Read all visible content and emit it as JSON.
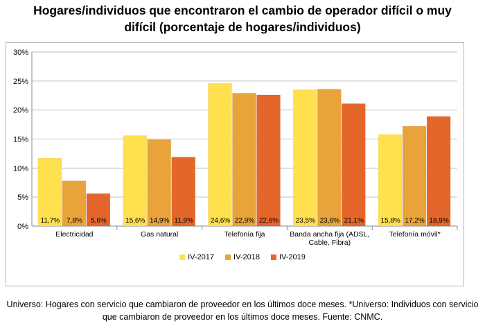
{
  "title_line1": "Hogares/individuos que encontraron el cambio de operador difícil o muy",
  "title_line2": "difícil (porcentaje de hogares/individuos)",
  "footnote_line1": "Universo: Hogares con servicio que cambiaron de proveedor en los últimos doce meses. *Universo: Individuos con servicio",
  "footnote_line2": "que cambiaron de proveedor en los últimos doce meses. Fuente: CNMC.",
  "chart_data": {
    "type": "bar",
    "categories": [
      "Electricidad",
      "Gas natural",
      "Telefonía fija",
      "Banda ancha fija (ADSL, Cable, Fibra)",
      "Telefonía móvil*"
    ],
    "category_lines": [
      [
        "Electricidad"
      ],
      [
        "Gas natural"
      ],
      [
        "Telefonía fija"
      ],
      [
        "Banda ancha fija (ADSL,",
        "Cable, Fibra)"
      ],
      [
        "Telefonía móvil*"
      ]
    ],
    "series": [
      {
        "name": "IV-2017",
        "values": [
          11.7,
          15.6,
          24.6,
          23.5,
          15.8
        ],
        "labels": [
          "11,7%",
          "15,6%",
          "24,6%",
          "23,5%",
          "15,8%"
        ],
        "color": "#FFE04F"
      },
      {
        "name": "IV-2018",
        "values": [
          7.8,
          14.9,
          22.9,
          23.6,
          17.2
        ],
        "labels": [
          "7,8%",
          "14,9%",
          "22,9%",
          "23,6%",
          "17,2%"
        ],
        "color": "#E8A33A"
      },
      {
        "name": "IV-2019",
        "values": [
          5.6,
          11.9,
          22.6,
          21.1,
          18.9
        ],
        "labels": [
          "5,6%",
          "11,9%",
          "22,6%",
          "21,1%",
          "18,9%"
        ],
        "color": "#E5662A"
      }
    ],
    "ylim": [
      0,
      30
    ],
    "yticks": [
      0,
      5,
      10,
      15,
      20,
      25,
      30
    ],
    "ytick_labels": [
      "0%",
      "5%",
      "10%",
      "15%",
      "20%",
      "25%",
      "30%"
    ],
    "grid": true,
    "legend_position": "bottom"
  }
}
